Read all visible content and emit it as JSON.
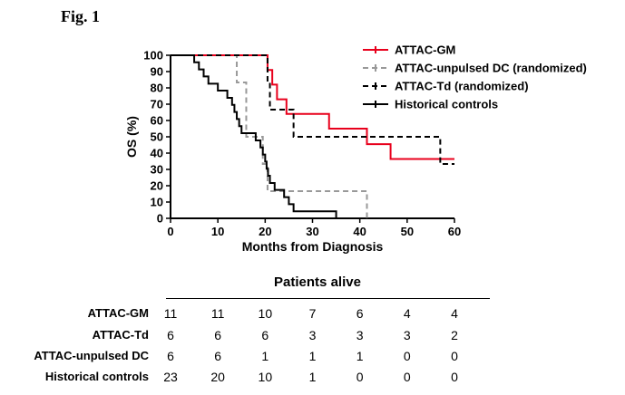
{
  "figure_label": "Fig. 1",
  "chart_data": {
    "type": "line",
    "xlabel": "Months from Diagnosis",
    "ylabel": "OS (%)",
    "xlim": [
      0,
      60
    ],
    "ylim": [
      0,
      100
    ],
    "xticks": [
      0,
      10,
      20,
      30,
      40,
      50,
      60
    ],
    "yticks": [
      0,
      10,
      20,
      30,
      40,
      50,
      60,
      70,
      80,
      90,
      100
    ],
    "grid": false,
    "legend_position": "top-right",
    "series": [
      {
        "name": "ATTAC-GM",
        "color": "#e8001c",
        "dash": "solid",
        "x": [
          0,
          20.5,
          21.5,
          22.5,
          24.5,
          33.5,
          41.5,
          46.5,
          60
        ],
        "y": [
          100,
          91,
          82,
          73,
          64,
          55,
          45.5,
          36.4,
          36.4
        ]
      },
      {
        "name": "ATTAC-unpulsed DC (randomized)",
        "color": "#999999",
        "dash": "dashed",
        "x": [
          0,
          14,
          16,
          19.5,
          20.5,
          41.5
        ],
        "y": [
          100,
          83.3,
          50,
          33.3,
          16.7,
          0
        ]
      },
      {
        "name": "ATTAC-Td (randomized)",
        "color": "#000000",
        "dash": "dashed",
        "x": [
          0,
          20.5,
          21,
          26,
          57,
          60
        ],
        "y": [
          100,
          83.3,
          66.7,
          50,
          33.3,
          33.3
        ]
      },
      {
        "name": "Historical controls",
        "color": "#000000",
        "dash": "solid",
        "x": [
          0,
          5,
          6,
          7,
          8,
          9,
          10,
          11,
          12,
          13,
          13.5,
          14,
          14.5,
          15,
          15.5,
          16,
          18,
          19,
          19.5,
          20,
          20.3,
          20.6,
          21,
          21.5,
          22,
          24,
          25,
          26,
          35
        ],
        "y": [
          100,
          95.7,
          91.3,
          87,
          82.6,
          82.6,
          78.3,
          78.3,
          73.9,
          69.6,
          65.2,
          60.9,
          56.5,
          52.2,
          52.2,
          52.2,
          47.8,
          43.5,
          39.1,
          34.8,
          30.4,
          26.1,
          21.7,
          21.7,
          17.4,
          13,
          8.7,
          4.3,
          0
        ]
      }
    ]
  },
  "table": {
    "title": "Patients alive",
    "time_points": [
      0,
      10,
      20,
      30,
      40,
      50,
      60
    ],
    "rows": [
      {
        "label": "ATTAC-GM",
        "values": [
          "11",
          "11",
          "10",
          "7",
          "6",
          "4",
          "4"
        ]
      },
      {
        "label": "ATTAC-Td",
        "values": [
          "6",
          "6",
          "6",
          "3",
          "3",
          "3",
          "2"
        ]
      },
      {
        "label": "ATTAC-unpulsed DC",
        "values": [
          "6",
          "6",
          "1",
          "1",
          "1",
          "0",
          "0"
        ]
      },
      {
        "label": "Historical controls",
        "values": [
          "23",
          "20",
          "10",
          "1",
          "0",
          "0",
          "0"
        ]
      }
    ]
  }
}
